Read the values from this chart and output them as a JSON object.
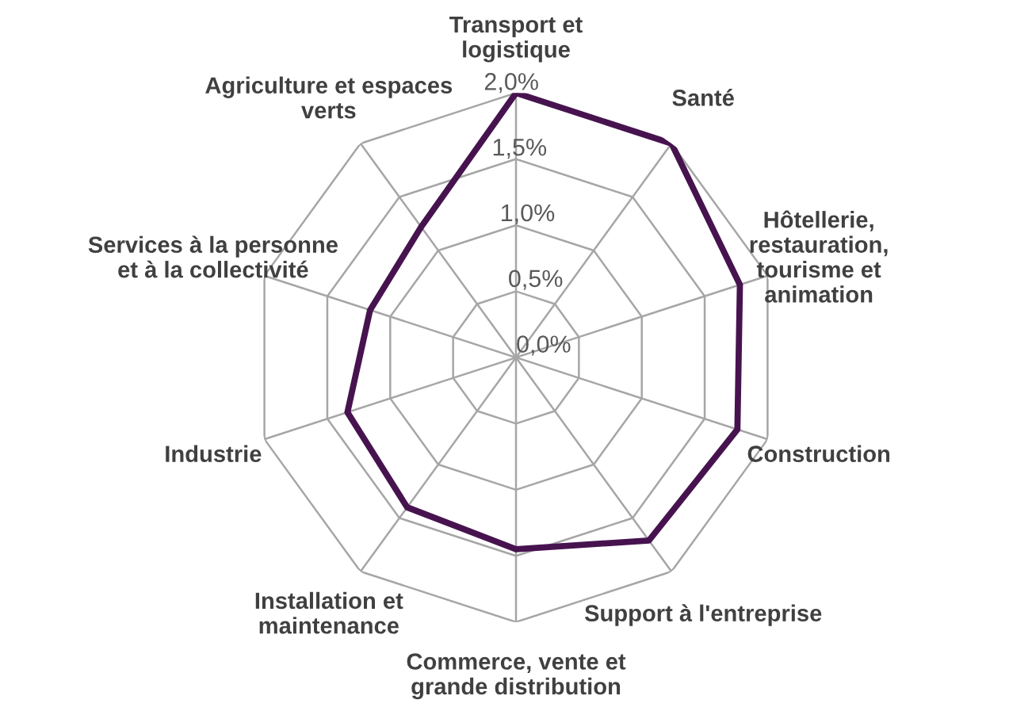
{
  "chart_data": {
    "type": "radar",
    "categories": [
      "Transport et\nlogistique",
      "Santé",
      "Hôtellerie,\nrestauration,\ntourisme et\nanimation",
      "Construction",
      "Support à l'entreprise",
      "Commerce, vente et\ngrande distribution",
      "Installation et\nmaintenance",
      "Industrie",
      "Services à la personne\net à la collectivité",
      "Agriculture et espaces\nverts"
    ],
    "series": [
      {
        "color": "#47134f",
        "values": [
          2.0,
          2.0,
          1.78,
          1.76,
          1.71,
          1.45,
          1.4,
          1.34,
          1.16,
          1.22
        ]
      }
    ],
    "ylim": [
      0,
      2.0
    ],
    "yticks": [
      {
        "value": 0,
        "label": "0,0%"
      },
      {
        "value": 0.5,
        "label": "0,5%"
      },
      {
        "value": 1.0,
        "label": "1,0%"
      },
      {
        "value": 1.5,
        "label": "1,5%"
      },
      {
        "value": 2.0,
        "label": "2,0%"
      }
    ],
    "grid": true,
    "marker": "none",
    "line_style": "solid"
  }
}
